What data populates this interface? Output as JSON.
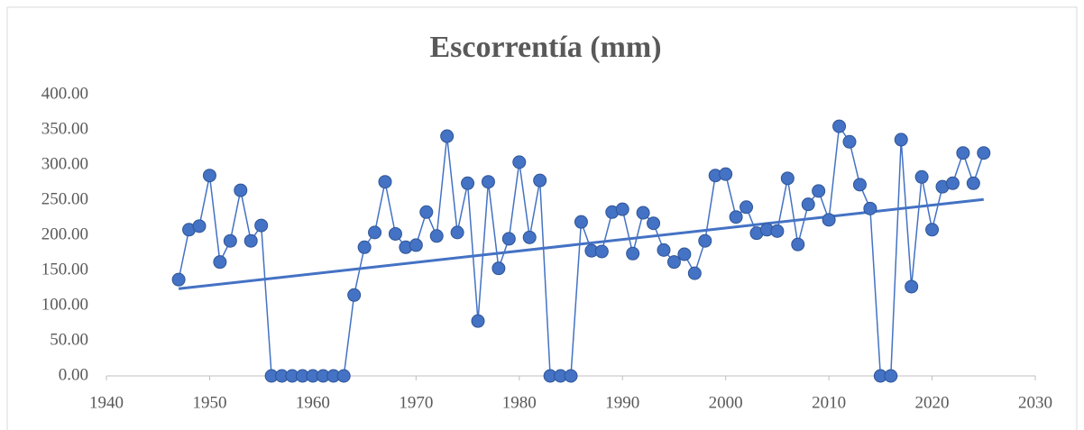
{
  "chart_data": {
    "type": "line",
    "title": "Escorrentía (mm)",
    "x": [
      1947,
      1948,
      1949,
      1950,
      1951,
      1952,
      1953,
      1954,
      1955,
      1956,
      1957,
      1958,
      1959,
      1960,
      1961,
      1962,
      1963,
      1964,
      1965,
      1966,
      1967,
      1968,
      1969,
      1970,
      1971,
      1972,
      1973,
      1974,
      1975,
      1976,
      1977,
      1978,
      1979,
      1980,
      1981,
      1982,
      1983,
      1984,
      1985,
      1986,
      1987,
      1988,
      1989,
      1990,
      1991,
      1992,
      1993,
      1994,
      1995,
      1996,
      1997,
      1998,
      1999,
      2000,
      2001,
      2002,
      2003,
      2004,
      2005,
      2006,
      2007,
      2008,
      2009,
      2010,
      2011,
      2012,
      2013,
      2014,
      2015,
      2016,
      2017,
      2018,
      2019,
      2020,
      2021,
      2022,
      2023,
      2024,
      2025
    ],
    "series": [
      {
        "color": "#4472c4",
        "values": [
          137,
          208,
          213,
          285,
          162,
          192,
          264,
          192,
          214,
          0,
          0,
          0,
          0,
          0,
          0,
          0,
          0,
          115,
          183,
          204,
          276,
          202,
          183,
          186,
          233,
          199,
          341,
          204,
          274,
          78,
          276,
          153,
          195,
          304,
          197,
          278,
          0,
          0,
          0,
          219,
          178,
          177,
          233,
          237,
          174,
          232,
          217,
          179,
          162,
          173,
          146,
          192,
          285,
          287,
          226,
          240,
          203,
          208,
          206,
          281,
          187,
          244,
          263,
          222,
          355,
          333,
          272,
          238,
          0,
          0,
          336,
          127,
          283,
          208,
          269,
          274,
          317,
          274,
          317
        ]
      }
    ],
    "trendline": {
      "color": "#4472c4",
      "x": [
        1947,
        2025
      ],
      "values": [
        124,
        251
      ]
    },
    "xlim": [
      1940,
      2030
    ],
    "xticks": [
      1940,
      1950,
      1960,
      1970,
      1980,
      1990,
      2000,
      2010,
      2020,
      2030
    ],
    "ylim": [
      0,
      400
    ],
    "yticks": [
      {
        "value": 0,
        "label": "0.00"
      },
      {
        "value": 50,
        "label": "50.00"
      },
      {
        "value": 100,
        "label": "100.00"
      },
      {
        "value": 150,
        "label": "150.00"
      },
      {
        "value": 200,
        "label": "200.00"
      },
      {
        "value": 250,
        "label": "250.00"
      },
      {
        "value": 300,
        "label": "300.00"
      },
      {
        "value": 350,
        "label": "350.00"
      },
      {
        "value": 400,
        "label": "400.00"
      }
    ],
    "grid": false
  }
}
